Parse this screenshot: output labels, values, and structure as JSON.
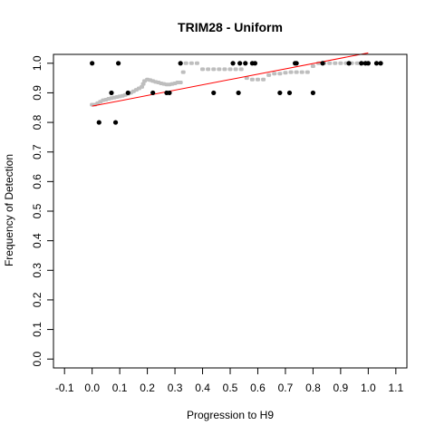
{
  "chart_data": {
    "type": "scatter",
    "title": "TRIM28 - Uniform",
    "xlabel": "Progression to H9",
    "ylabel": "Frequency of Detection",
    "xlim": [
      -0.14,
      1.14
    ],
    "ylim": [
      -0.03,
      1.03
    ],
    "x_ticks": [
      "-0.1",
      "0.0",
      "0.1",
      "0.2",
      "0.3",
      "0.4",
      "0.5",
      "0.6",
      "0.7",
      "0.8",
      "0.9",
      "1.0",
      "1.1"
    ],
    "y_ticks": [
      "0.0",
      "0.1",
      "0.2",
      "0.3",
      "0.4",
      "0.5",
      "0.6",
      "0.7",
      "0.8",
      "0.9",
      "1.0"
    ],
    "grid": false,
    "legend": "none",
    "colors": {
      "observed": "#000000",
      "smoothed": "#bebebe",
      "fit": "#ff0000"
    },
    "series": [
      {
        "kind": "observed",
        "points": [
          [
            0.0,
            1.0
          ],
          [
            0.025,
            0.8
          ],
          [
            0.07,
            0.9
          ],
          [
            0.085,
            0.8
          ],
          [
            0.095,
            1.0
          ],
          [
            0.13,
            0.9
          ],
          [
            0.22,
            0.9
          ],
          [
            0.27,
            0.9
          ],
          [
            0.28,
            0.9
          ],
          [
            0.32,
            1.0
          ],
          [
            0.44,
            0.9
          ],
          [
            0.51,
            1.0
          ],
          [
            0.53,
            0.9
          ],
          [
            0.535,
            1.0
          ],
          [
            0.555,
            1.0
          ],
          [
            0.58,
            1.0
          ],
          [
            0.59,
            1.0
          ],
          [
            0.68,
            0.9
          ],
          [
            0.715,
            0.9
          ],
          [
            0.735,
            1.0
          ],
          [
            0.74,
            1.0
          ],
          [
            0.8,
            0.9
          ],
          [
            0.835,
            1.0
          ],
          [
            0.93,
            1.0
          ],
          [
            0.975,
            1.0
          ],
          [
            0.99,
            1.0
          ],
          [
            1.0,
            1.0
          ],
          [
            1.03,
            1.0
          ],
          [
            1.045,
            1.0
          ]
        ]
      },
      {
        "kind": "smoothed",
        "points": [
          [
            0.0,
            0.86
          ],
          [
            0.01,
            0.86
          ],
          [
            0.02,
            0.865
          ],
          [
            0.03,
            0.87
          ],
          [
            0.04,
            0.875
          ],
          [
            0.05,
            0.877
          ],
          [
            0.06,
            0.88
          ],
          [
            0.07,
            0.882
          ],
          [
            0.08,
            0.884
          ],
          [
            0.09,
            0.886
          ],
          [
            0.1,
            0.888
          ],
          [
            0.11,
            0.89
          ],
          [
            0.12,
            0.893
          ],
          [
            0.13,
            0.897
          ],
          [
            0.14,
            0.9
          ],
          [
            0.15,
            0.905
          ],
          [
            0.16,
            0.91
          ],
          [
            0.17,
            0.915
          ],
          [
            0.18,
            0.92
          ],
          [
            0.185,
            0.93
          ],
          [
            0.19,
            0.94
          ],
          [
            0.2,
            0.945
          ],
          [
            0.21,
            0.943
          ],
          [
            0.22,
            0.94
          ],
          [
            0.23,
            0.937
          ],
          [
            0.24,
            0.935
          ],
          [
            0.25,
            0.932
          ],
          [
            0.26,
            0.93
          ],
          [
            0.27,
            0.928
          ],
          [
            0.28,
            0.928
          ],
          [
            0.29,
            0.93
          ],
          [
            0.3,
            0.932
          ],
          [
            0.31,
            0.935
          ],
          [
            0.32,
            0.935
          ],
          [
            0.33,
            0.97
          ],
          [
            0.34,
            1.0
          ],
          [
            0.36,
            1.0
          ],
          [
            0.38,
            1.0
          ],
          [
            0.4,
            0.98
          ],
          [
            0.42,
            0.98
          ],
          [
            0.44,
            0.98
          ],
          [
            0.46,
            0.98
          ],
          [
            0.48,
            0.98
          ],
          [
            0.5,
            0.98
          ],
          [
            0.52,
            0.98
          ],
          [
            0.54,
            0.98
          ],
          [
            0.56,
            0.95
          ],
          [
            0.58,
            0.945
          ],
          [
            0.6,
            0.945
          ],
          [
            0.62,
            0.945
          ],
          [
            0.64,
            0.96
          ],
          [
            0.66,
            0.965
          ],
          [
            0.68,
            0.965
          ],
          [
            0.7,
            0.968
          ],
          [
            0.72,
            0.97
          ],
          [
            0.74,
            0.97
          ],
          [
            0.76,
            0.97
          ],
          [
            0.78,
            0.97
          ],
          [
            0.8,
            0.99
          ],
          [
            0.82,
            1.0
          ],
          [
            0.84,
            1.0
          ],
          [
            0.86,
            1.0
          ],
          [
            0.88,
            1.0
          ],
          [
            0.9,
            1.0
          ],
          [
            0.92,
            1.0
          ],
          [
            0.94,
            1.0
          ],
          [
            0.96,
            1.0
          ],
          [
            0.98,
            1.0
          ],
          [
            1.0,
            1.0
          ]
        ]
      },
      {
        "kind": "fit",
        "points": [
          [
            0.0,
            0.855
          ],
          [
            1.0,
            1.035
          ]
        ]
      }
    ]
  }
}
